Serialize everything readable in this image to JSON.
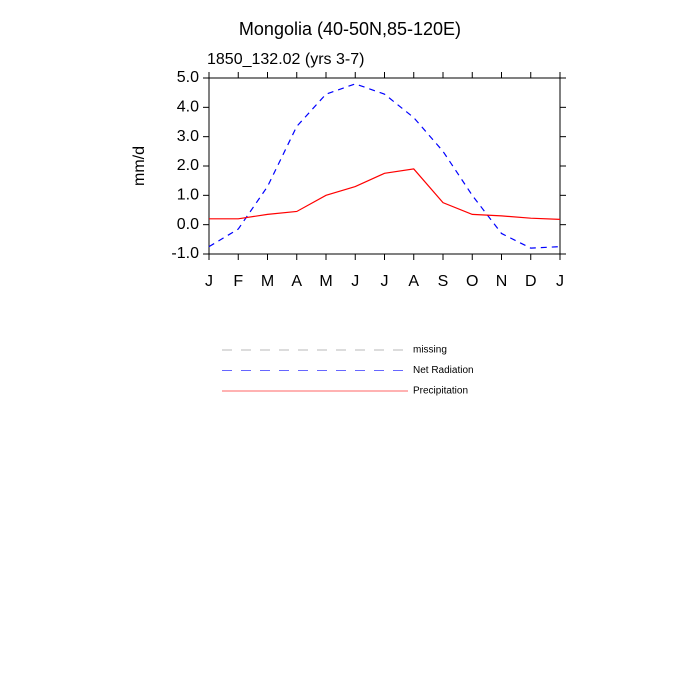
{
  "chart_data": {
    "type": "line",
    "title": "Mongolia (40-50N,85-120E)",
    "subtitle": "1850_132.02 (yrs 3-7)",
    "y_label": "mm/d",
    "categories": [
      "J",
      "F",
      "M",
      "A",
      "M",
      "J",
      "J",
      "A",
      "S",
      "O",
      "N",
      "D",
      "J"
    ],
    "ylim": [
      -1.0,
      5.0
    ],
    "yticks": [
      {
        "value": -1.0,
        "label": "-1.0"
      },
      {
        "value": 0.0,
        "label": "0.0"
      },
      {
        "value": 1.0,
        "label": "1.0"
      },
      {
        "value": 2.0,
        "label": "2.0"
      },
      {
        "value": 3.0,
        "label": "3.0"
      },
      {
        "value": 4.0,
        "label": "4.0"
      },
      {
        "value": 5.0,
        "label": "5.0"
      }
    ],
    "series": [
      {
        "name": "missing",
        "color": "#888888",
        "dashed": true,
        "values": [
          null,
          null,
          null,
          null,
          null,
          null,
          null,
          null,
          null,
          null,
          null,
          null,
          null
        ]
      },
      {
        "name": "Net Radiation",
        "color": "#0000ff",
        "dashed": true,
        "values": [
          -0.75,
          -0.15,
          1.3,
          3.35,
          4.45,
          4.8,
          4.45,
          3.65,
          2.5,
          1.0,
          -0.3,
          -0.8,
          -0.75
        ]
      },
      {
        "name": "Precipitation",
        "color": "#ff0000",
        "dashed": false,
        "values": [
          0.2,
          0.2,
          0.35,
          0.45,
          1.0,
          1.3,
          1.75,
          1.9,
          0.75,
          0.35,
          0.3,
          0.22,
          0.18
        ]
      }
    ]
  }
}
